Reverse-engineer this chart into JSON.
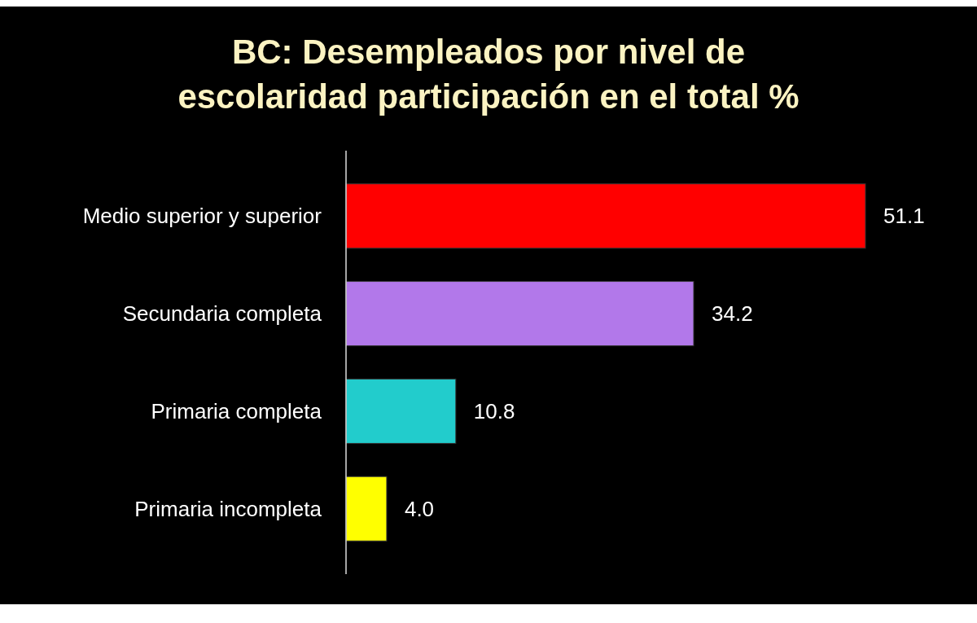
{
  "chart_data": {
    "type": "bar",
    "orientation": "horizontal",
    "title": "BC: Desempleados por nivel de escolaridad participación en el total %",
    "categories": [
      "Medio superior y superior",
      "Secundaria completa",
      "Primaria completa",
      "Primaria incompleta"
    ],
    "values": [
      51.1,
      34.2,
      10.8,
      4.0
    ],
    "colors": [
      "#ff0000",
      "#b278ea",
      "#22cccc",
      "#ffff00"
    ],
    "value_labels": [
      "51.1",
      "34.2",
      "10.8",
      "4.0"
    ]
  }
}
